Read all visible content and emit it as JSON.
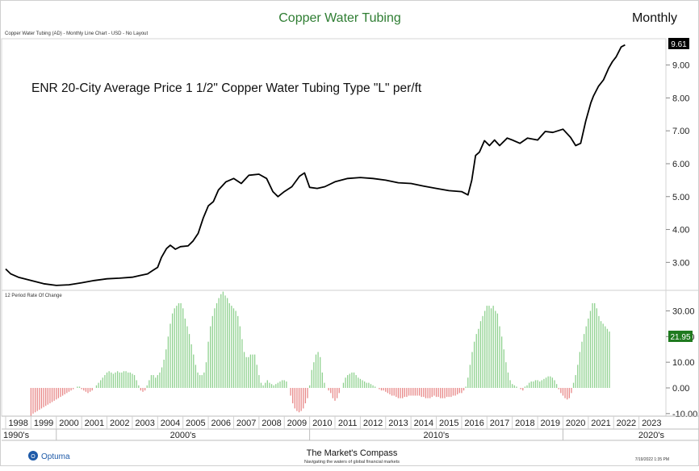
{
  "header": {
    "title": "Copper Water Tubing",
    "title_color": "#2e7d32",
    "period": "Monthly",
    "subtitle": "Copper Water Tubing (AD) - Monthly Line Chart - USD - No Layout"
  },
  "chart_data": [
    {
      "type": "line",
      "title": "ENR 20-City Average Price 1 1/2\" Copper Water Tubing Type \"L\" per/ft",
      "x_unit": "year",
      "ylim": [
        2.15,
        9.8
      ],
      "yticks": [
        "3.00",
        "4.00",
        "5.00",
        "6.00",
        "7.00",
        "8.00",
        "9.00"
      ],
      "last_value_label": "9.61",
      "line_color": "#000000",
      "series": [
        {
          "x": [
            1998.0,
            1998.2,
            1998.5,
            1999.0,
            1999.5,
            2000.0,
            2000.5,
            2001.0,
            2001.5,
            2002.0,
            2002.5,
            2003.0,
            2003.3,
            2003.6,
            2003.8,
            2004.0,
            2004.15,
            2004.35,
            2004.5,
            2004.7,
            2004.9,
            2005.2,
            2005.4,
            2005.6,
            2005.8,
            2006.0,
            2006.2,
            2006.4,
            2006.7,
            2007.0,
            2007.3,
            2007.6,
            2008.0,
            2008.3,
            2008.55,
            2008.75,
            2009.0,
            2009.3,
            2009.6,
            2009.8,
            2010.0,
            2010.3,
            2010.6,
            2011.0,
            2011.5,
            2012.0,
            2012.5,
            2013.0,
            2013.5,
            2014.0,
            2014.5,
            2015.0,
            2015.5,
            2016.0,
            2016.25,
            2016.4,
            2016.55,
            2016.7,
            2016.9,
            2017.1,
            2017.3,
            2017.5,
            2017.8,
            2018.0,
            2018.3,
            2018.6,
            2019.0,
            2019.3,
            2019.6,
            2020.0,
            2020.3,
            2020.5,
            2020.7,
            2020.9,
            2021.1,
            2021.2,
            2021.4,
            2021.6,
            2021.8,
            2021.95,
            2022.1,
            2022.3,
            2022.45
          ],
          "y": [
            2.8,
            2.65,
            2.55,
            2.45,
            2.35,
            2.3,
            2.32,
            2.38,
            2.45,
            2.5,
            2.52,
            2.55,
            2.6,
            2.65,
            2.75,
            2.85,
            3.15,
            3.42,
            3.52,
            3.4,
            3.48,
            3.5,
            3.65,
            3.88,
            4.35,
            4.72,
            4.85,
            5.2,
            5.45,
            5.55,
            5.4,
            5.65,
            5.68,
            5.55,
            5.15,
            5.0,
            5.15,
            5.3,
            5.62,
            5.72,
            5.28,
            5.25,
            5.3,
            5.45,
            5.55,
            5.58,
            5.55,
            5.5,
            5.42,
            5.4,
            5.32,
            5.25,
            5.18,
            5.15,
            5.05,
            5.5,
            6.25,
            6.35,
            6.7,
            6.55,
            6.72,
            6.55,
            6.78,
            6.72,
            6.62,
            6.78,
            6.72,
            6.98,
            6.95,
            7.05,
            6.8,
            6.55,
            6.62,
            7.3,
            7.85,
            8.05,
            8.35,
            8.55,
            8.9,
            9.1,
            9.25,
            9.55,
            9.61
          ]
        }
      ]
    },
    {
      "type": "bar",
      "title": "12 Period Rate Of Change",
      "x_unit": "year",
      "ylim": [
        -11,
        38
      ],
      "yticks": [
        "-10.00",
        "0.00",
        "10.00",
        "20.00",
        "30.00"
      ],
      "last_value_label": "21.95",
      "positive_color": "#8fd18f",
      "negative_color": "#e88888",
      "start": 1999.0,
      "step": 0.0833333,
      "values": [
        -11,
        -10,
        -9.5,
        -9,
        -8.5,
        -8,
        -7.5,
        -7,
        -6.5,
        -6,
        -5.5,
        -5,
        -4.5,
        -4,
        -3.5,
        -3,
        -2.5,
        -2,
        -1.5,
        -1,
        -0.5,
        0,
        0.5,
        0.5,
        -0.5,
        -1,
        -1.5,
        -2,
        -1.5,
        -1,
        0,
        1,
        2,
        3,
        4,
        5,
        6,
        6.5,
        6,
        5.5,
        6,
        6.5,
        6,
        6,
        6.5,
        6.5,
        6,
        6,
        5.5,
        5,
        3,
        1,
        -1,
        -1.5,
        -1,
        1,
        3,
        5,
        5,
        4,
        5,
        6,
        8,
        11,
        15,
        20,
        25,
        29,
        31,
        32,
        33,
        33,
        31,
        27,
        24,
        21,
        17,
        13,
        9,
        6,
        5,
        5,
        6,
        10,
        18,
        24,
        28,
        31,
        33,
        35,
        36.5,
        37.5,
        36,
        35,
        33,
        32,
        31,
        30,
        28,
        24,
        19,
        14,
        12,
        12,
        13,
        13,
        13,
        9,
        5,
        2,
        1,
        2,
        3,
        2,
        1.5,
        1,
        1.5,
        2,
        2.5,
        3,
        3,
        2.5,
        0,
        -3,
        -6,
        -8,
        -9,
        -9.5,
        -9,
        -8,
        -6,
        -4,
        1,
        7,
        10,
        13,
        14,
        12,
        6,
        2,
        0,
        -1,
        -2,
        -4,
        -5,
        -4,
        -2,
        0,
        2,
        4,
        5,
        5.5,
        6,
        6,
        5,
        4,
        3.5,
        3,
        2.5,
        2,
        2,
        1.5,
        1,
        0.5,
        0,
        -0.5,
        -1,
        -1,
        -1.5,
        -2,
        -2.5,
        -3,
        -3,
        -3.5,
        -4,
        -4,
        -4,
        -3.5,
        -3.5,
        -3,
        -3,
        -3,
        -3,
        -3,
        -3,
        -3.5,
        -3.5,
        -4,
        -4,
        -4,
        -3.5,
        -3,
        -3.5,
        -3.5,
        -4,
        -4,
        -4,
        -3.5,
        -3.5,
        -3.5,
        -3,
        -3,
        -2.5,
        -2,
        -2,
        -1,
        0.5,
        4,
        9,
        14,
        18,
        21,
        23,
        26,
        28,
        30,
        32,
        32,
        31,
        32,
        30,
        29,
        24,
        20,
        15,
        10,
        6,
        3,
        1.5,
        1,
        0.5,
        0,
        -0.5,
        -1,
        0.5,
        1,
        2,
        2.5,
        2.5,
        3,
        3,
        2.5,
        3,
        3.5,
        4,
        4.5,
        4.5,
        4,
        3,
        1.5,
        -0.5,
        -2,
        -3,
        -4,
        -4.5,
        -4,
        -2,
        2,
        5,
        9,
        14,
        18,
        21,
        24,
        27,
        30,
        33,
        33,
        31,
        28,
        26,
        25,
        24,
        23,
        21.95
      ],
      "series": []
    }
  ],
  "x_axis": {
    "years": [
      "1998",
      "1999",
      "2000",
      "2001",
      "2002",
      "2003",
      "2004",
      "2005",
      "2006",
      "2007",
      "2008",
      "2009",
      "2010",
      "2011",
      "2012",
      "2013",
      "2014",
      "2015",
      "2016",
      "2017",
      "2018",
      "2019",
      "2020",
      "2021",
      "2022",
      "2023"
    ],
    "decades": [
      "1990's",
      "2000's",
      "2010's",
      "2020's"
    ]
  },
  "footer": {
    "left_brand": "Optuma",
    "center_brand": "The Market's Compass",
    "center_tagline": "Navigating the waters of global financial markets",
    "timestamp": "7/19/2022 1:35 PM"
  }
}
